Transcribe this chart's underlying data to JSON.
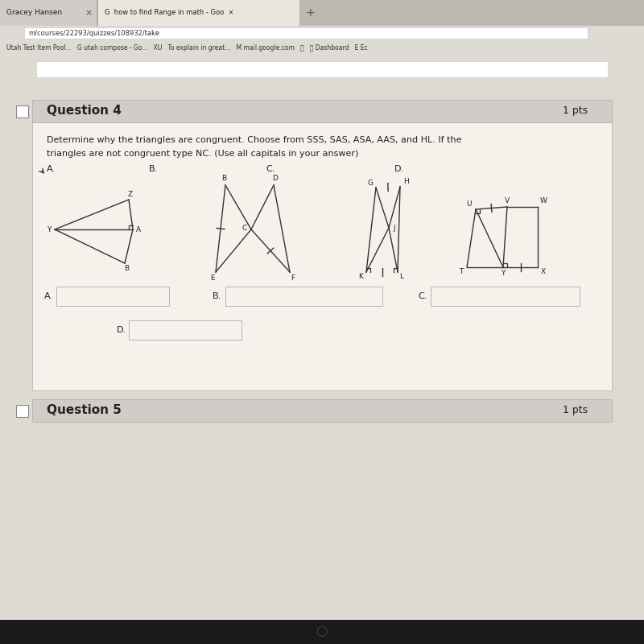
{
  "bg_outer": "#c8c4bc",
  "bg_page": "#dedad2",
  "bg_content": "#f0ece4",
  "bg_header": "#d0ccc8",
  "bg_white": "#ffffff",
  "bg_dark_bar": "#1a1a1a",
  "tab_text1": "Gracey Hansen",
  "tab_text2": "how to find Range in math - Goo",
  "url_text": "m/courses/22293/quizzes/108932/take",
  "bookmark_text": "Utah Test Item Pool...   G utah compose - Go...   XU   To explain in great...   M mail.google.com   Ⓢ   ⭘ Dashboard   E Ec",
  "q4_title": "Question 4",
  "q4_pts": "1 pts",
  "q_text1": "Determine why the triangles are congruent. Choose from SSS, SAS, ASA, AAS, and HL. If the",
  "q_text2": "triangles are not congruent type NC. (Use all capitals in your answer)",
  "q5_title": "Question 5",
  "q5_pts": "1 pts",
  "line_color": "#333333",
  "text_color": "#222222"
}
